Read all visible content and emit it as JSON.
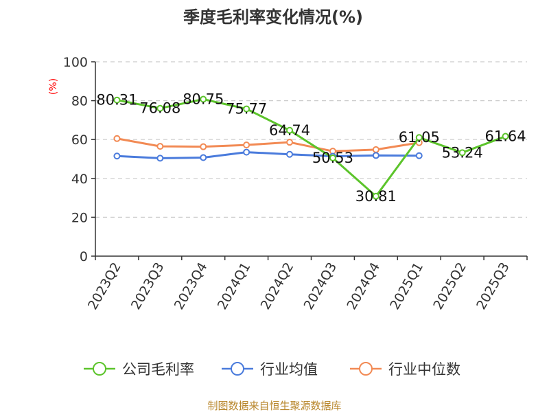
{
  "chart_data": {
    "type": "line",
    "title": "季度毛利率变化情况(%)",
    "ylabel": "(%)",
    "xlabel": "",
    "ylim": [
      0,
      100
    ],
    "yticks": [
      0,
      20,
      40,
      60,
      80,
      100
    ],
    "grid": "horizontal-dashed",
    "legend_position": "bottom",
    "categories": [
      "2023Q2",
      "2023Q3",
      "2023Q4",
      "2024Q1",
      "2024Q2",
      "2024Q3",
      "2024Q4",
      "2025Q1",
      "2025Q2",
      "2025Q3"
    ],
    "series": [
      {
        "name": "公司毛利率",
        "color": "#5cc42b",
        "show_labels": true,
        "values": [
          80.31,
          76.08,
          80.75,
          75.77,
          64.74,
          50.53,
          30.81,
          61.05,
          53.24,
          61.64
        ],
        "labels": [
          "80.31",
          "76.08",
          "80.75",
          "75.77",
          "64.74",
          "50.53",
          "30.81",
          "61.05",
          "53.24",
          "61.64"
        ]
      },
      {
        "name": "行业均值",
        "color": "#4a7bdc",
        "show_labels": false,
        "values": [
          51.5,
          50.4,
          50.7,
          53.5,
          52.4,
          51.4,
          51.8,
          51.7,
          null,
          null
        ]
      },
      {
        "name": "行业中位数",
        "color": "#f28a54",
        "show_labels": false,
        "values": [
          60.5,
          56.5,
          56.3,
          57.2,
          58.6,
          54.0,
          54.8,
          58.4,
          null,
          null
        ]
      }
    ]
  },
  "source_text": "制图数据来自恒生聚源数据库"
}
